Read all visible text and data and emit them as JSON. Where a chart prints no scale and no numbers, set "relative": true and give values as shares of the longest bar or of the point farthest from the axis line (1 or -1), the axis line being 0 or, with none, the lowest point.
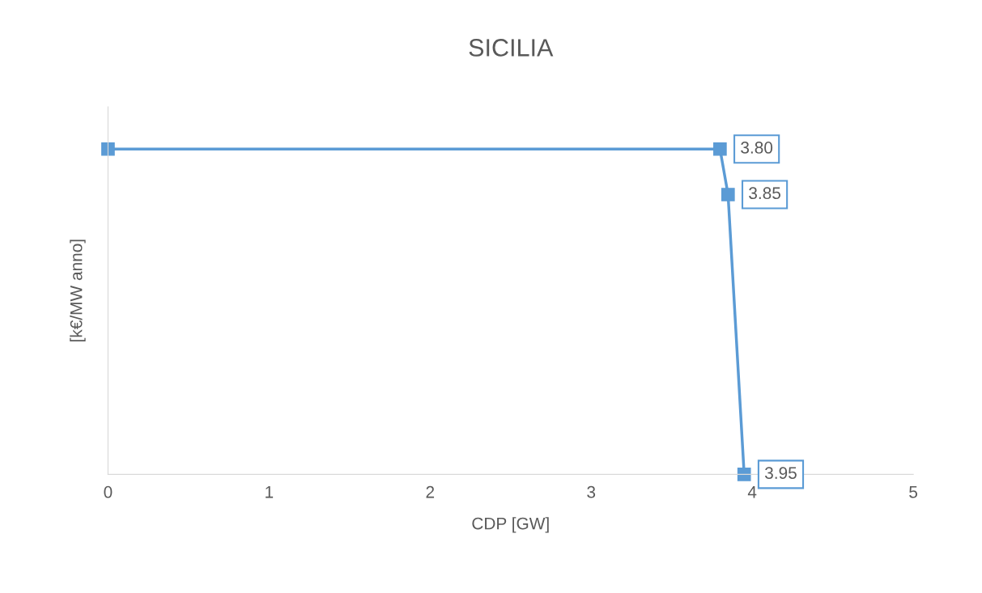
{
  "chart_data": {
    "type": "line",
    "title": "SICILIA",
    "xlabel": "CDP [GW]",
    "ylabel": "[k€/MW anno]",
    "relative": true,
    "x": [
      0,
      3.8,
      3.85,
      3.95
    ],
    "series": [
      {
        "color": "#5b9bd5",
        "values": [
          1,
          1,
          0.86,
          0
        ]
      }
    ],
    "annotations": [
      {
        "text": "3.80",
        "x": 3.8,
        "y": 1
      },
      {
        "text": "3.85",
        "x": 3.85,
        "y": 0.86
      },
      {
        "text": "3.95",
        "x": 3.95,
        "y": 0
      }
    ],
    "xlim": [
      0,
      5
    ],
    "xticks": [
      0,
      1,
      2,
      3,
      4,
      5
    ],
    "marker": "square",
    "line_style": "solid",
    "grid": false,
    "legend": false
  }
}
